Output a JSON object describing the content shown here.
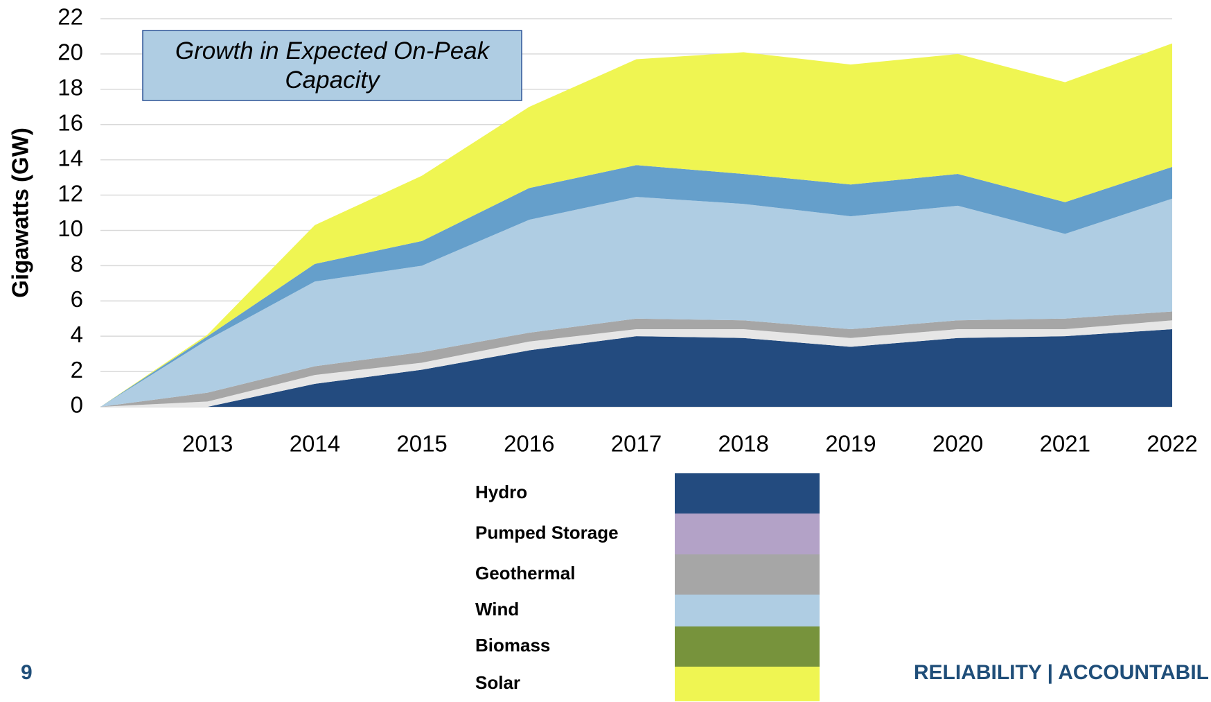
{
  "chart_data": {
    "type": "stacked_area",
    "annotation": "Growth in Expected On-Peak Capacity",
    "y_label": "Gigawatts (GW)",
    "categories": [
      null,
      "2013",
      "2014",
      "2015",
      "2016",
      "2017",
      "2018",
      "2019",
      "2020",
      "2021",
      "2022"
    ],
    "series": [
      {
        "name": "Hydro",
        "color": "#234b7f",
        "legend_color": "#234b7f",
        "values": [
          0,
          0,
          1.3,
          2.1,
          3.2,
          4.0,
          3.9,
          3.4,
          3.9,
          4.0,
          4.4
        ]
      },
      {
        "name": "Pumped Storage",
        "color": "#e6e6e6",
        "legend_color": "#b3a2c7",
        "values": [
          0,
          0.3,
          0.5,
          0.4,
          0.5,
          0.4,
          0.5,
          0.5,
          0.5,
          0.4,
          0.5
        ]
      },
      {
        "name": "Geothermal",
        "color": "#a6a6a6",
        "legend_color": "#a6a6a6",
        "values": [
          0,
          0.5,
          0.5,
          0.6,
          0.5,
          0.6,
          0.5,
          0.5,
          0.5,
          0.6,
          0.5
        ]
      },
      {
        "name": "Wind",
        "color": "#afcde3",
        "legend_color": "#afcde3",
        "values": [
          0,
          3.0,
          4.8,
          4.9,
          6.4,
          6.9,
          6.6,
          6.4,
          6.5,
          4.8,
          6.4
        ]
      },
      {
        "name": "Biomass",
        "color": "#659fcb",
        "legend_color": "#77933c",
        "values": [
          0,
          0.2,
          1.0,
          1.4,
          1.8,
          1.8,
          1.7,
          1.8,
          1.8,
          1.8,
          1.8
        ]
      },
      {
        "name": "Solar",
        "color": "#eff552",
        "legend_color": "#eff552",
        "values": [
          0,
          0.1,
          2.2,
          3.7,
          4.6,
          6.0,
          6.9,
          6.8,
          6.8,
          6.8,
          7.0
        ]
      }
    ],
    "ylim": [
      0,
      22
    ],
    "yticks": [
      0,
      2,
      4,
      6,
      8,
      10,
      12,
      14,
      16,
      18,
      20,
      22
    ],
    "grid": true
  },
  "footer": {
    "page_number": "9",
    "text": "RELIABILITY | ACCOUNTABIL"
  }
}
